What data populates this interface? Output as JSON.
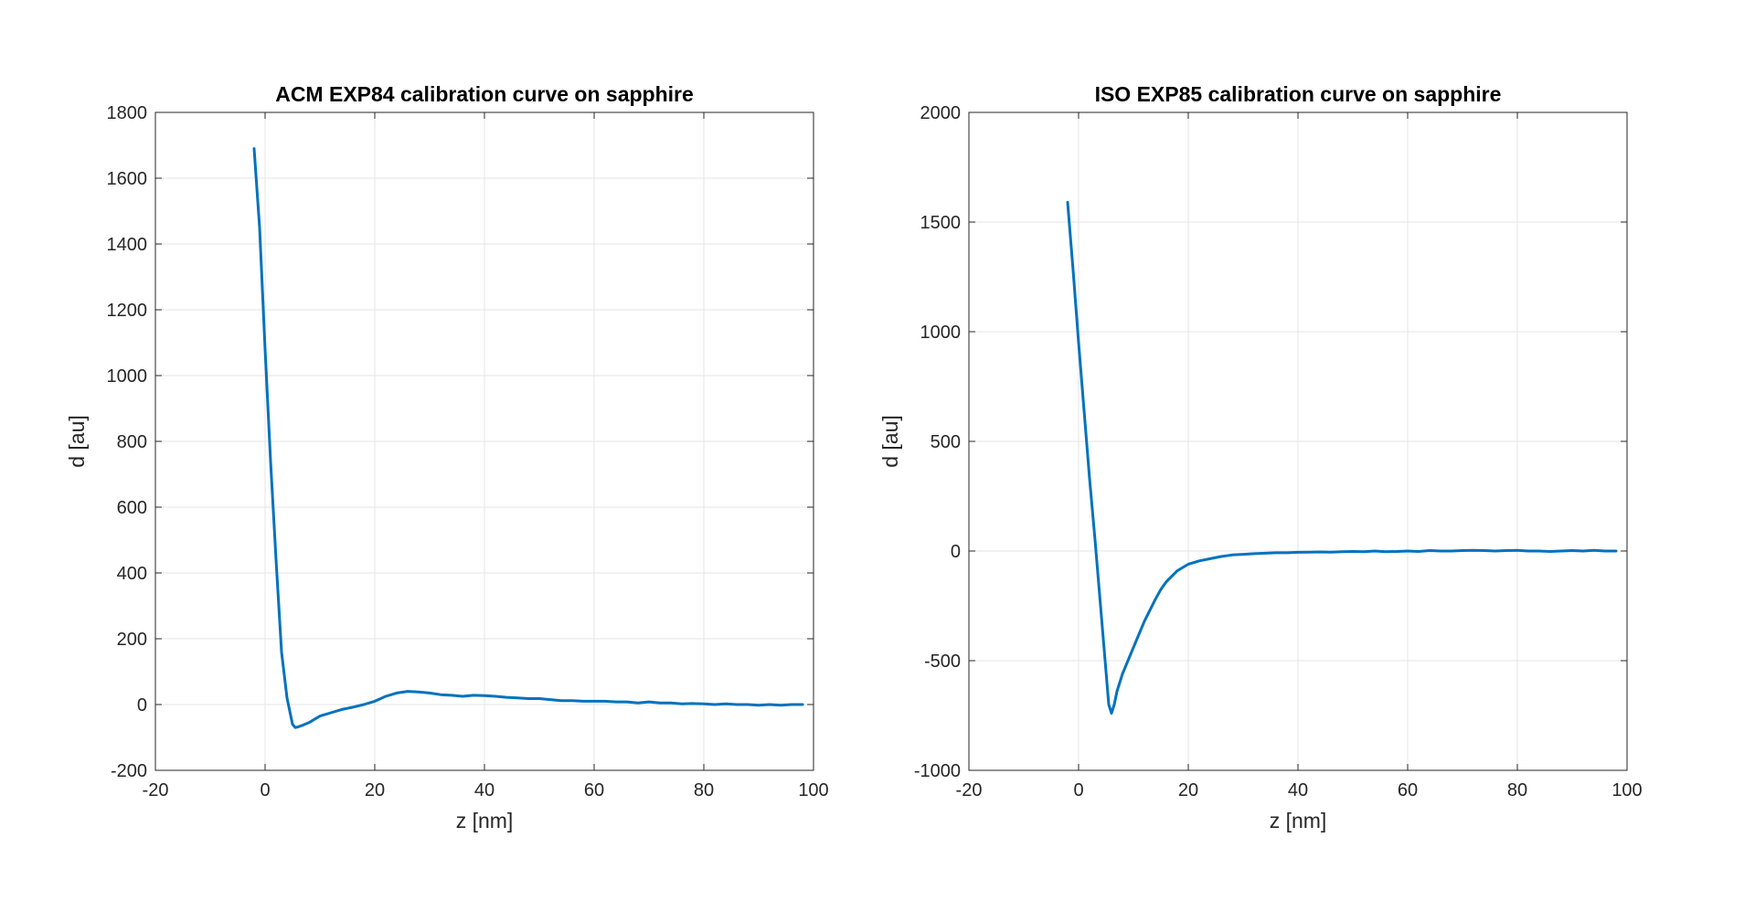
{
  "chart_data": [
    {
      "type": "line",
      "title": "ACM EXP84 calibration curve on sapphire",
      "xlabel": "z [nm]",
      "ylabel": "d [au]",
      "xlim": [
        -20,
        100
      ],
      "ylim": [
        -200,
        1800
      ],
      "xticks": [
        -20,
        0,
        20,
        40,
        60,
        80,
        100
      ],
      "yticks": [
        -200,
        0,
        200,
        400,
        600,
        800,
        1000,
        1200,
        1400,
        1600,
        1800
      ],
      "grid": true,
      "color": "#0072bd",
      "series": [
        {
          "x": [
            -2,
            -1,
            0,
            1,
            2,
            3,
            4,
            5,
            5.5,
            6,
            7,
            8,
            9,
            10,
            11,
            12,
            14,
            16,
            18,
            20,
            22,
            24,
            26,
            28,
            30,
            32,
            34,
            36,
            38,
            40,
            42,
            44,
            46,
            48,
            50,
            52,
            54,
            56,
            58,
            60,
            62,
            64,
            66,
            68,
            70,
            72,
            74,
            76,
            78,
            80,
            82,
            84,
            86,
            88,
            90,
            92,
            94,
            96,
            98
          ],
          "y": [
            1690,
            1450,
            1080,
            740,
            440,
            160,
            20,
            -60,
            -70,
            -68,
            -62,
            -55,
            -45,
            -35,
            -30,
            -25,
            -15,
            -8,
            0,
            10,
            25,
            35,
            40,
            38,
            35,
            30,
            28,
            25,
            28,
            27,
            25,
            22,
            20,
            18,
            18,
            15,
            12,
            12,
            10,
            10,
            10,
            8,
            8,
            5,
            8,
            5,
            5,
            2,
            3,
            2,
            0,
            2,
            0,
            0,
            -2,
            0,
            -2,
            0,
            0
          ]
        }
      ]
    },
    {
      "type": "line",
      "title": "ISO EXP85 calibration curve on sapphire",
      "xlabel": "z [nm]",
      "ylabel": "d [au]",
      "xlim": [
        -20,
        100
      ],
      "ylim": [
        -1000,
        2000
      ],
      "xticks": [
        -20,
        0,
        20,
        40,
        60,
        80,
        100
      ],
      "yticks": [
        -1000,
        -500,
        0,
        500,
        1000,
        1500,
        2000
      ],
      "grid": true,
      "color": "#0072bd",
      "series": [
        {
          "x": [
            -2,
            -1,
            0,
            1,
            2,
            3,
            4,
            5,
            5.5,
            6,
            6.5,
            7,
            8,
            9,
            10,
            11,
            12,
            13,
            14,
            15,
            16,
            17,
            18,
            19,
            20,
            22,
            24,
            26,
            28,
            30,
            32,
            34,
            36,
            38,
            40,
            42,
            44,
            46,
            48,
            50,
            52,
            54,
            56,
            58,
            60,
            62,
            64,
            66,
            68,
            70,
            72,
            74,
            76,
            78,
            80,
            82,
            84,
            86,
            88,
            90,
            92,
            94,
            96,
            98
          ],
          "y": [
            1590,
            1280,
            950,
            640,
            330,
            50,
            -250,
            -550,
            -700,
            -740,
            -700,
            -640,
            -560,
            -500,
            -440,
            -380,
            -320,
            -270,
            -220,
            -175,
            -140,
            -115,
            -90,
            -75,
            -60,
            -45,
            -35,
            -25,
            -18,
            -15,
            -12,
            -10,
            -8,
            -8,
            -6,
            -5,
            -4,
            -5,
            -3,
            -2,
            -3,
            0,
            -3,
            -2,
            0,
            -2,
            2,
            0,
            0,
            2,
            3,
            2,
            0,
            2,
            3,
            0,
            0,
            -2,
            0,
            2,
            0,
            3,
            0,
            0
          ]
        }
      ]
    }
  ]
}
